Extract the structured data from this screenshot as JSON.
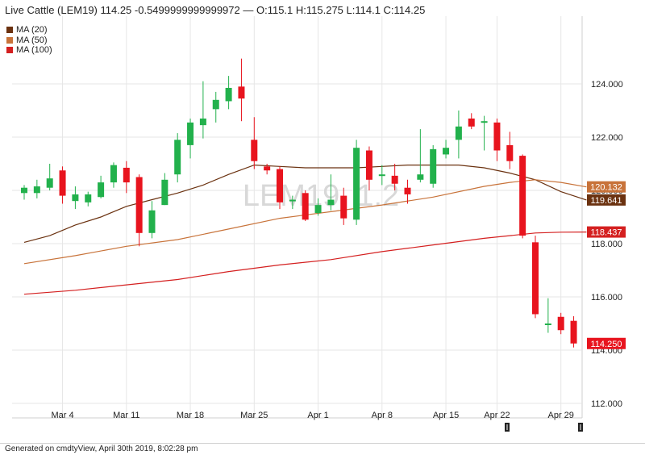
{
  "header": {
    "title": "Live Cattle (LEM19) 114.25 -0.5499999999999972 — O:115.1 H:115.275 L:114.1 C:114.25"
  },
  "legend": [
    {
      "label": "MA (20)",
      "color": "#6b3210"
    },
    {
      "label": "MA (50)",
      "color": "#c8733a"
    },
    {
      "label": "MA (100)",
      "color": "#d42020"
    }
  ],
  "watermark": "LEM19, 1.2",
  "footer": {
    "text": "Generated on cmdtyView, April 30th 2019, 8:02:28 pm"
  },
  "chart_data": {
    "type": "candlestick",
    "ylim": [
      111.3,
      126.5
    ],
    "yticks": [
      112,
      114,
      116,
      118,
      120,
      122,
      124
    ],
    "ytick_labels": [
      "112.000",
      "114.000",
      "116.000",
      "118.000",
      "120.000",
      "122.000",
      "124.000"
    ],
    "xtick_labels": [
      {
        "label": "Mar 4",
        "index": 3
      },
      {
        "label": "Mar 11",
        "index": 8
      },
      {
        "label": "Mar 18",
        "index": 13
      },
      {
        "label": "Mar 25",
        "index": 18
      },
      {
        "label": "Apr 1",
        "index": 23
      },
      {
        "label": "Apr 8",
        "index": 28
      },
      {
        "label": "Apr 15",
        "index": 33
      },
      {
        "label": "Apr 22",
        "index": 37
      },
      {
        "label": "Apr 29",
        "index": 42
      }
    ],
    "candles": [
      {
        "o": 119.9,
        "h": 120.2,
        "l": 119.65,
        "c": 120.1
      },
      {
        "o": 119.9,
        "h": 120.4,
        "l": 119.7,
        "c": 120.15
      },
      {
        "o": 120.1,
        "h": 121.0,
        "l": 120.0,
        "c": 120.45
      },
      {
        "o": 120.75,
        "h": 120.9,
        "l": 119.5,
        "c": 119.8
      },
      {
        "o": 119.6,
        "h": 120.15,
        "l": 119.3,
        "c": 119.85
      },
      {
        "o": 119.55,
        "h": 119.95,
        "l": 119.4,
        "c": 119.85
      },
      {
        "o": 119.75,
        "h": 120.55,
        "l": 119.7,
        "c": 120.3
      },
      {
        "o": 120.3,
        "h": 121.05,
        "l": 120.1,
        "c": 120.95
      },
      {
        "o": 120.85,
        "h": 121.1,
        "l": 119.9,
        "c": 120.3
      },
      {
        "o": 120.5,
        "h": 120.6,
        "l": 117.9,
        "c": 118.4
      },
      {
        "o": 118.4,
        "h": 119.6,
        "l": 118.2,
        "c": 119.25
      },
      {
        "o": 119.45,
        "h": 120.65,
        "l": 119.45,
        "c": 120.4
      },
      {
        "o": 120.6,
        "h": 122.15,
        "l": 120.3,
        "c": 121.9
      },
      {
        "o": 121.7,
        "h": 122.7,
        "l": 121.2,
        "c": 122.55
      },
      {
        "o": 122.45,
        "h": 124.1,
        "l": 121.95,
        "c": 122.7
      },
      {
        "o": 123.05,
        "h": 123.7,
        "l": 122.55,
        "c": 123.4
      },
      {
        "o": 123.35,
        "h": 124.3,
        "l": 123.05,
        "c": 123.85
      },
      {
        "o": 123.9,
        "h": 124.95,
        "l": 122.6,
        "c": 123.45
      },
      {
        "o": 121.9,
        "h": 122.75,
        "l": 120.8,
        "c": 121.1
      },
      {
        "o": 120.9,
        "h": 121.0,
        "l": 120.6,
        "c": 120.75
      },
      {
        "o": 120.8,
        "h": 120.9,
        "l": 119.3,
        "c": 119.55
      },
      {
        "o": 119.6,
        "h": 119.8,
        "l": 119.3,
        "c": 119.65
      },
      {
        "o": 119.9,
        "h": 120.0,
        "l": 118.85,
        "c": 118.9
      },
      {
        "o": 119.15,
        "h": 119.7,
        "l": 119.05,
        "c": 119.45
      },
      {
        "o": 119.45,
        "h": 120.6,
        "l": 119.25,
        "c": 119.65
      },
      {
        "o": 119.8,
        "h": 120.1,
        "l": 118.7,
        "c": 118.95
      },
      {
        "o": 118.9,
        "h": 121.9,
        "l": 118.7,
        "c": 121.6
      },
      {
        "o": 121.5,
        "h": 121.65,
        "l": 120.0,
        "c": 120.4
      },
      {
        "o": 120.55,
        "h": 120.95,
        "l": 120.2,
        "c": 120.6
      },
      {
        "o": 120.55,
        "h": 121.0,
        "l": 120.0,
        "c": 120.25
      },
      {
        "o": 120.1,
        "h": 120.4,
        "l": 119.5,
        "c": 119.85
      },
      {
        "o": 120.4,
        "h": 122.3,
        "l": 120.3,
        "c": 120.6
      },
      {
        "o": 120.25,
        "h": 121.7,
        "l": 120.1,
        "c": 121.55
      },
      {
        "o": 121.35,
        "h": 121.9,
        "l": 121.2,
        "c": 121.6
      },
      {
        "o": 121.9,
        "h": 123.0,
        "l": 121.2,
        "c": 122.4
      },
      {
        "o": 122.7,
        "h": 122.9,
        "l": 122.3,
        "c": 122.4
      },
      {
        "o": 122.55,
        "h": 122.8,
        "l": 121.5,
        "c": 122.6
      },
      {
        "o": 122.55,
        "h": 122.7,
        "l": 121.1,
        "c": 121.5
      },
      {
        "o": 121.7,
        "h": 122.2,
        "l": 120.8,
        "c": 121.1
      },
      {
        "o": 121.3,
        "h": 121.35,
        "l": 118.2,
        "c": 118.3
      },
      {
        "o": 118.05,
        "h": 118.3,
        "l": 115.2,
        "c": 115.35
      },
      {
        "o": 115.0,
        "h": 115.95,
        "l": 114.65,
        "c": 115.0
      },
      {
        "o": 115.25,
        "h": 115.4,
        "l": 114.6,
        "c": 114.75
      },
      {
        "o": 115.1,
        "h": 115.275,
        "l": 114.1,
        "c": 114.25
      }
    ],
    "series": [
      {
        "name": "MA (20)",
        "color": "#6b3210",
        "last_value": 119.641,
        "last_label": "119.641",
        "points": [
          [
            0,
            118.05
          ],
          [
            2,
            118.3
          ],
          [
            4,
            118.7
          ],
          [
            6,
            119.0
          ],
          [
            8,
            119.4
          ],
          [
            10,
            119.65
          ],
          [
            12,
            119.9
          ],
          [
            14,
            120.2
          ],
          [
            16,
            120.6
          ],
          [
            18,
            120.95
          ],
          [
            20,
            120.9
          ],
          [
            22,
            120.85
          ],
          [
            24,
            120.85
          ],
          [
            26,
            120.85
          ],
          [
            28,
            120.9
          ],
          [
            30,
            120.95
          ],
          [
            32,
            120.95
          ],
          [
            34,
            120.95
          ],
          [
            36,
            120.85
          ],
          [
            38,
            120.65
          ],
          [
            40,
            120.4
          ],
          [
            42,
            119.95
          ],
          [
            44,
            119.64
          ]
        ]
      },
      {
        "name": "MA (50)",
        "color": "#c8733a",
        "last_value": 120.132,
        "last_label": "120.132",
        "points": [
          [
            0,
            117.25
          ],
          [
            4,
            117.55
          ],
          [
            8,
            117.9
          ],
          [
            12,
            118.15
          ],
          [
            16,
            118.55
          ],
          [
            20,
            118.95
          ],
          [
            24,
            119.2
          ],
          [
            28,
            119.45
          ],
          [
            32,
            119.75
          ],
          [
            36,
            120.15
          ],
          [
            38,
            120.3
          ],
          [
            40,
            120.4
          ],
          [
            42,
            120.3
          ],
          [
            44,
            120.13
          ]
        ]
      },
      {
        "name": "MA (100)",
        "color": "#d42020",
        "last_value": 118.437,
        "last_label": "118.437",
        "points": [
          [
            0,
            116.1
          ],
          [
            4,
            116.25
          ],
          [
            8,
            116.45
          ],
          [
            12,
            116.65
          ],
          [
            16,
            116.95
          ],
          [
            20,
            117.2
          ],
          [
            24,
            117.4
          ],
          [
            28,
            117.7
          ],
          [
            32,
            117.95
          ],
          [
            36,
            118.2
          ],
          [
            40,
            118.4
          ],
          [
            42,
            118.43
          ],
          [
            44,
            118.437
          ]
        ]
      }
    ],
    "last_price_label": "114.250",
    "last_price": 114.25
  }
}
